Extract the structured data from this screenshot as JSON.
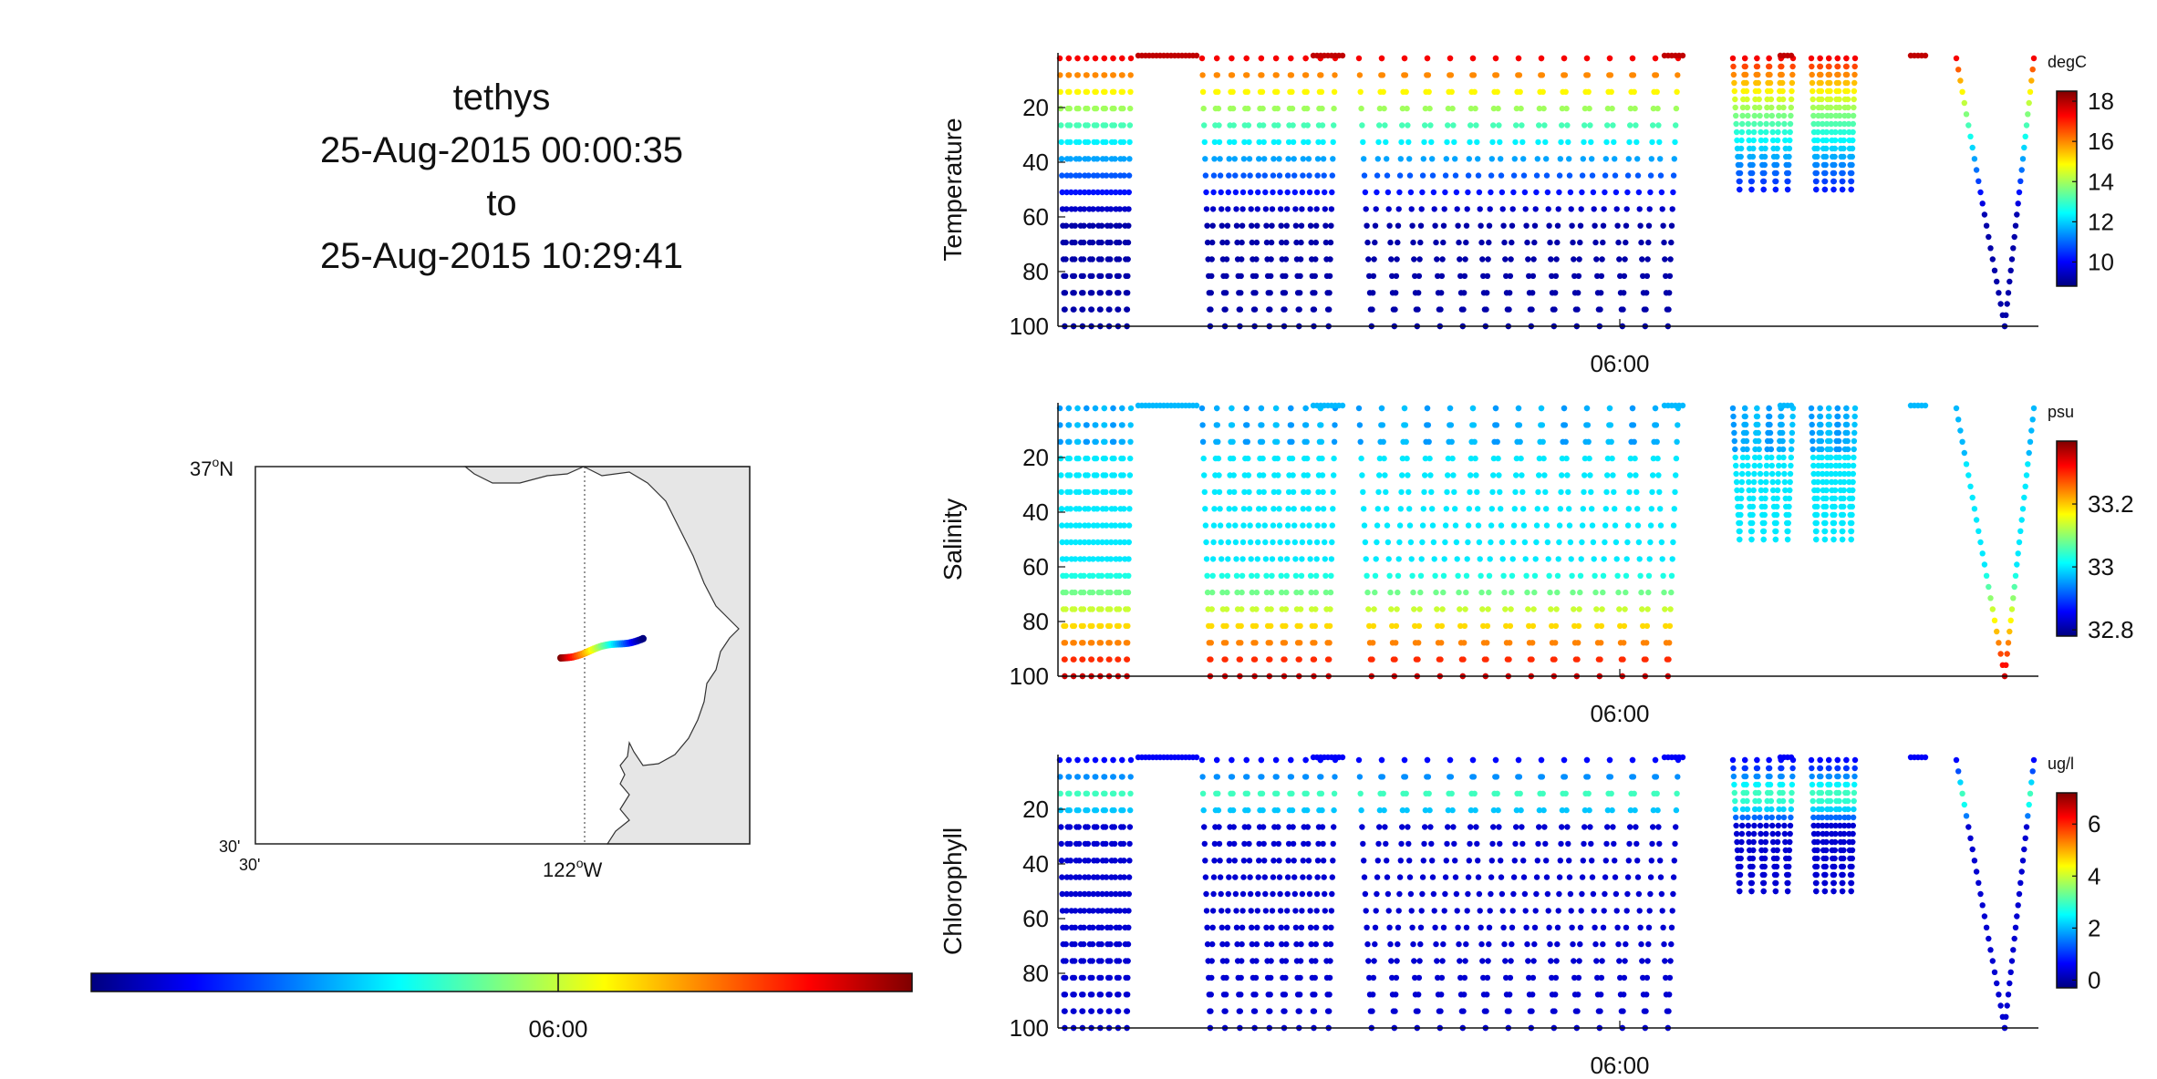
{
  "title": {
    "platform": "tethys",
    "start": "25-Aug-2015 00:00:35",
    "to": "to",
    "end": "25-Aug-2015 10:29:41"
  },
  "map": {
    "lat_top_label": "37",
    "lat_top_hemi": "N",
    "lat_bottom_label": "30'",
    "lon_left_label": "30'",
    "lon_mid_label": "122",
    "lon_mid_hemi": "W",
    "degree_symbol": "o",
    "land_color": "#e6e6e6"
  },
  "timebar": {
    "tick_label": "06:00",
    "colormap": "jet"
  },
  "colors": {
    "jet_stops": [
      "#00007f",
      "#0000ff",
      "#007fff",
      "#00ffff",
      "#7fff7f",
      "#ffff00",
      "#ff7f00",
      "#ff0000",
      "#7f0000"
    ]
  },
  "chart_data": [
    {
      "type": "scatter",
      "ylabel": "Temperature",
      "units": "degC",
      "yticks": [
        20,
        40,
        60,
        80,
        100
      ],
      "ylim": [
        100,
        0
      ],
      "xtick_label": "06:00",
      "clim": [
        8.8,
        18.5
      ],
      "cticks": [
        10,
        12,
        14,
        16,
        18
      ],
      "cticks_labels": [
        "10",
        "12",
        "14",
        "16",
        "18"
      ]
    },
    {
      "type": "scatter",
      "ylabel": "Salinity",
      "units": "psu",
      "yticks": [
        20,
        40,
        60,
        80,
        100
      ],
      "ylim": [
        100,
        0
      ],
      "xtick_label": "06:00",
      "clim": [
        32.78,
        33.4
      ],
      "cticks": [
        32.8,
        33,
        33.2
      ],
      "cticks_labels": [
        "32.8",
        "33",
        "33.2"
      ]
    },
    {
      "type": "scatter",
      "ylabel": "Chlorophyll",
      "units": "ug/l",
      "yticks": [
        20,
        40,
        60,
        80,
        100
      ],
      "ylim": [
        100,
        0
      ],
      "xtick_label": "06:00",
      "clim": [
        -0.3,
        7.2
      ],
      "cticks": [
        0,
        2,
        4,
        6
      ],
      "cticks_labels": [
        "0",
        "2",
        "4",
        "6"
      ]
    }
  ]
}
